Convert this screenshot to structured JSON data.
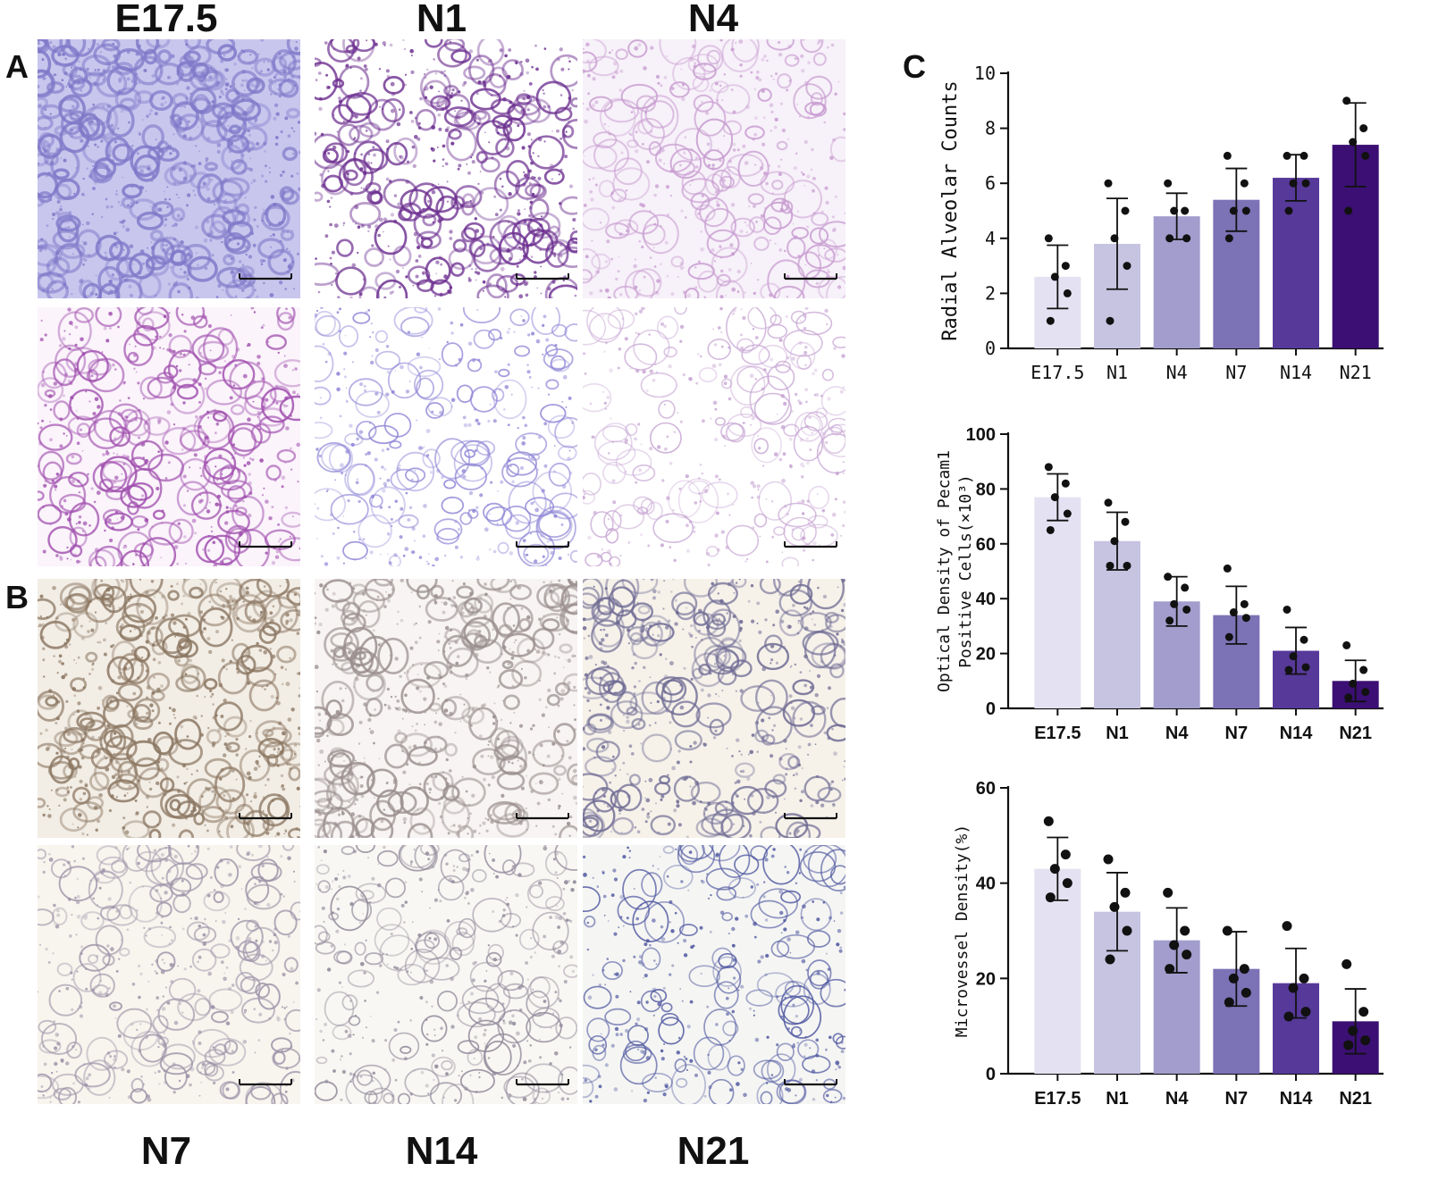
{
  "panel_letters": {
    "a": "A",
    "b": "B",
    "c": "C"
  },
  "column_labels_top": [
    "E17.5",
    "N1",
    "N4"
  ],
  "column_labels_bottom": [
    "N7",
    "N14",
    "N21"
  ],
  "micrographs": [
    {
      "stain": "he",
      "tone": "#7f78c8",
      "bg": "#c9c6ee",
      "density": 0.85
    },
    {
      "stain": "he",
      "tone": "#6b2d8f",
      "bg": "#ffffff",
      "density": 0.55
    },
    {
      "stain": "he",
      "tone": "#c79bd0",
      "bg": "#f7f1f9",
      "density": 0.35
    },
    {
      "stain": "he",
      "tone": "#a04fae",
      "bg": "#fbf4fb",
      "density": 0.45
    },
    {
      "stain": "he",
      "tone": "#8f86d6",
      "bg": "#ffffff",
      "density": 0.25
    },
    {
      "stain": "he",
      "tone": "#c7a5d3",
      "bg": "#ffffff",
      "density": 0.2
    },
    {
      "stain": "ihc",
      "tone": "#8a7560",
      "bg": "#f2ede5",
      "density": 0.6
    },
    {
      "stain": "ihc",
      "tone": "#9a8e8e",
      "bg": "#f7f4f3",
      "density": 0.55
    },
    {
      "stain": "ihc",
      "tone": "#6e6a93",
      "bg": "#f6f2ea",
      "density": 0.45
    },
    {
      "stain": "ihc",
      "tone": "#9c93a8",
      "bg": "#f8f5ee",
      "density": 0.35
    },
    {
      "stain": "ihc",
      "tone": "#8f8799",
      "bg": "#f9f7f3",
      "density": 0.28
    },
    {
      "stain": "ihc",
      "tone": "#4e57a0",
      "bg": "#f5f5f3",
      "density": 0.22
    }
  ],
  "colors": {
    "bar_fills": [
      "#e4e2f2",
      "#c7c4e2",
      "#a29dcd",
      "#7c72b6",
      "#57399a",
      "#3b0f73"
    ],
    "axis": "#111111",
    "points": "#111111"
  },
  "chart_data": [
    {
      "type": "bar",
      "categories": [
        "E17.5",
        "N1",
        "N4",
        "N7",
        "N14",
        "N21"
      ],
      "ylabel": "Radial Alveolar Counts",
      "ylim": [
        0,
        10
      ],
      "yticks": [
        0,
        2,
        4,
        6,
        8,
        10
      ],
      "values": [
        2.6,
        3.8,
        4.8,
        5.4,
        6.2,
        7.4
      ],
      "error": [
        1.15,
        1.65,
        0.84,
        1.14,
        0.84,
        1.52
      ],
      "points": [
        [
          4.0,
          3.0,
          2.6,
          2.0,
          1.0
        ],
        [
          6.0,
          5.0,
          4.0,
          3.0,
          1.0
        ],
        [
          6.0,
          5.0,
          5.0,
          4.0,
          4.0
        ],
        [
          7.0,
          6.0,
          5.0,
          5.0,
          4.0
        ],
        [
          7.0,
          7.0,
          6.0,
          6.0,
          5.0
        ],
        [
          9.0,
          8.0,
          7.5,
          7.0,
          5.0
        ]
      ],
      "tick_style": "mono"
    },
    {
      "type": "bar",
      "categories": [
        "E17.5",
        "N1",
        "N4",
        "N7",
        "N14",
        "N21"
      ],
      "ylabel": "Optical Density of Pecam1",
      "ylabel2": "Positive Cells(×10³)",
      "ylim": [
        0,
        100
      ],
      "yticks": [
        0,
        20,
        40,
        60,
        80,
        100
      ],
      "values": [
        77,
        61,
        39,
        34,
        21,
        10
      ],
      "error": [
        8.5,
        10.5,
        9.0,
        10.5,
        8.5,
        7.5
      ],
      "points": [
        [
          88,
          82,
          77,
          71,
          65
        ],
        [
          75,
          68,
          61,
          52,
          52
        ],
        [
          48,
          44,
          38,
          36,
          32
        ],
        [
          51,
          38,
          35,
          33,
          26
        ],
        [
          36,
          25,
          19,
          15,
          14
        ],
        [
          23,
          14,
          9,
          6,
          4
        ]
      ],
      "tick_style": "bold"
    },
    {
      "type": "bar",
      "categories": [
        "E17.5",
        "N1",
        "N4",
        "N7",
        "N14",
        "N21"
      ],
      "ylabel": "Microvessel Density(%)",
      "ylim": [
        0,
        60
      ],
      "yticks": [
        0,
        20,
        40,
        60
      ],
      "values": [
        43,
        34,
        28,
        22,
        19,
        11
      ],
      "error": [
        6.6,
        8.2,
        6.8,
        7.8,
        7.3,
        6.8
      ],
      "points": [
        [
          53,
          46,
          43,
          40,
          37
        ],
        [
          45,
          38,
          35,
          30,
          24
        ],
        [
          38,
          30,
          27,
          25,
          22
        ],
        [
          30,
          22,
          20,
          17,
          15
        ],
        [
          31,
          20,
          18,
          13,
          12
        ],
        [
          23,
          13,
          9,
          7,
          6
        ]
      ],
      "tick_style": "bold"
    }
  ]
}
